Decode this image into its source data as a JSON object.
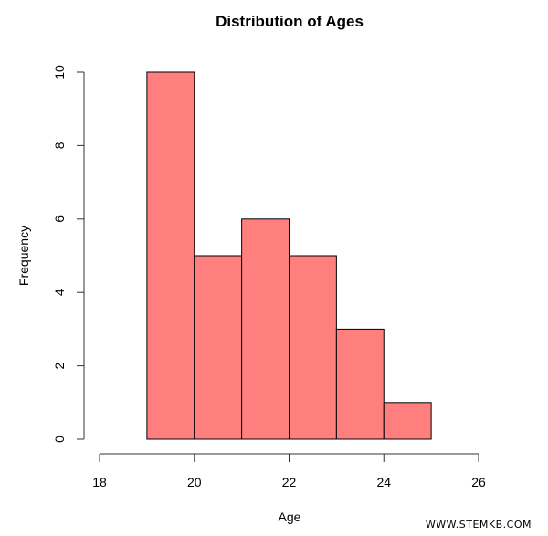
{
  "chart_data": {
    "type": "bar",
    "subtype": "histogram",
    "title": "Distribution of Ages",
    "xlabel": "Age",
    "ylabel": "Frequency",
    "bins": [
      [
        19,
        20
      ],
      [
        20,
        21
      ],
      [
        21,
        22
      ],
      [
        22,
        23
      ],
      [
        23,
        24
      ],
      [
        24,
        25
      ]
    ],
    "categories": [
      "19-20",
      "20-21",
      "21-22",
      "22-23",
      "23-24",
      "24-25"
    ],
    "values": [
      10,
      5,
      6,
      5,
      3,
      1
    ],
    "xlim": [
      18,
      26
    ],
    "ylim": [
      0,
      10
    ],
    "xticks": [
      18,
      20,
      22,
      24,
      26
    ],
    "yticks": [
      0,
      2,
      4,
      6,
      8,
      10
    ],
    "grid": false,
    "legend": null,
    "bar_color": "#FF7F7F",
    "edge_color": "#000000"
  },
  "labels": {
    "title": "Distribution of Ages",
    "xlabel": "Age",
    "ylabel": "Frequency",
    "watermark": "WWW.STEMKB.COM",
    "xticks": [
      "18",
      "20",
      "22",
      "24",
      "26"
    ],
    "yticks": [
      "0",
      "2",
      "4",
      "6",
      "8",
      "10"
    ]
  }
}
